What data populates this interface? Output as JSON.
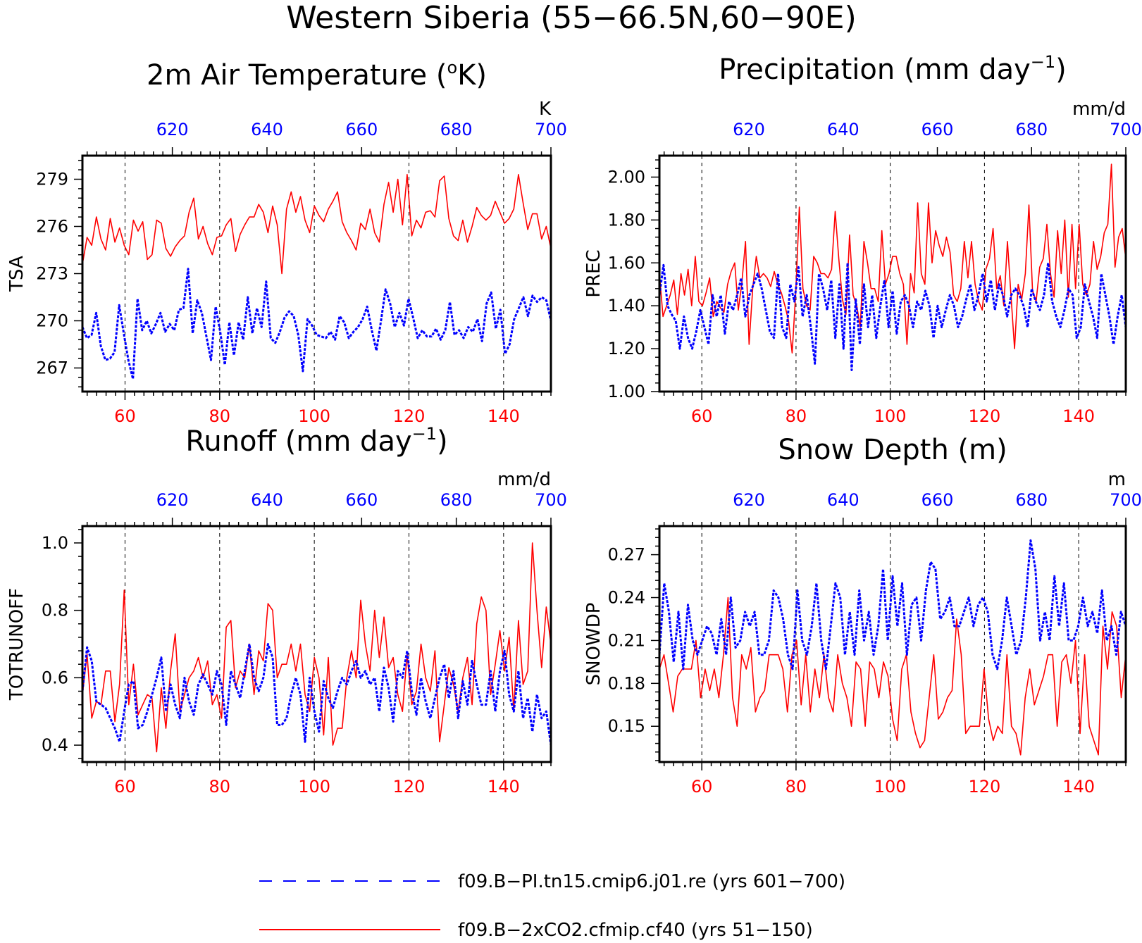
{
  "title": "Western Siberia (55−66.5N,60−90E)",
  "colors": {
    "run_2xco2": "#ff0000",
    "run_pi": "#0000ff",
    "axis": "#000000"
  },
  "legend": {
    "entries": [
      {
        "label": "f09.B−PI.tn15.cmip6.j01.re (yrs 601−700)",
        "color": "#0000ff",
        "style": "dashed"
      },
      {
        "label": "f09.B−2xCO2.cfmip.cf40 (yrs 51−150)",
        "color": "#ff0000",
        "style": "solid"
      }
    ]
  },
  "chart_data": [
    {
      "type": "line",
      "title_main": "2m Air Temperature (",
      "title_sup": "o",
      "title_tail": "K)",
      "ylabel": "TSA",
      "unit": "K",
      "xlim_bottom": [
        51,
        150
      ],
      "xlim_top": [
        601,
        700
      ],
      "xticks_bottom": [
        "60",
        "80",
        "100",
        "120",
        "140"
      ],
      "xticks_top": [
        "620",
        "640",
        "660",
        "680",
        "700"
      ],
      "ylim": [
        265.5,
        280.5
      ],
      "yticks": [
        "267",
        "270",
        "273",
        "276",
        "279"
      ],
      "grid_x": true,
      "series": [
        {
          "values": [
            273.6,
            275.3,
            274.8,
            276.6,
            275.2,
            274.5,
            276.5,
            275.0,
            275.9,
            274.8,
            274.2,
            276.4,
            275.7,
            276.3,
            273.9,
            274.2,
            276.4,
            276.2,
            274.6,
            274.1,
            274.7,
            275.1,
            275.4,
            276.9,
            277.8,
            275.2,
            276.0,
            274.9,
            274.2,
            275.3,
            275.4,
            276.1,
            276.5,
            274.4,
            275.5,
            276.1,
            276.6,
            276.6,
            277.4,
            276.9,
            275.6,
            277.3,
            276.1,
            273.0,
            277.1,
            278.2,
            276.9,
            277.9,
            276.4,
            275.6,
            277.3,
            276.7,
            276.3,
            277.1,
            277.6,
            278.2,
            276.3,
            275.6,
            275.1,
            274.5,
            276.2,
            275.8,
            277.1,
            275.6,
            275.0,
            277.4,
            278.8,
            276.9,
            279.0,
            276.1,
            279.3,
            275.4,
            276.4,
            275.9,
            276.9,
            277.0,
            276.6,
            278.9,
            279.2,
            276.5,
            275.4,
            275.1,
            276.4,
            275.0,
            276.0,
            277.2,
            276.7,
            276.4,
            276.7,
            277.6,
            276.9,
            276.2,
            276.5,
            277.1,
            279.3,
            277.5,
            275.8,
            276.8,
            276.8,
            275.2,
            276.0,
            274.6
          ]
        },
        {
          "values": [
            269.6,
            268.9,
            269.1,
            270.5,
            268.4,
            267.5,
            267.6,
            268.0,
            271.0,
            269.2,
            267.5,
            266.3,
            271.4,
            269.4,
            270.0,
            269.2,
            269.8,
            270.5,
            269.3,
            269.8,
            269.4,
            270.7,
            270.8,
            273.3,
            269.2,
            271.3,
            270.5,
            269.0,
            267.5,
            270.9,
            269.3,
            267.2,
            269.9,
            267.8,
            269.9,
            268.8,
            271.5,
            269.2,
            270.8,
            269.6,
            272.5,
            268.9,
            268.6,
            269.3,
            270.2,
            270.6,
            270.3,
            269.1,
            266.8,
            270.1,
            269.7,
            269.1,
            269.0,
            268.9,
            269.3,
            268.8,
            270.3,
            269.9,
            268.9,
            269.3,
            269.6,
            270.1,
            270.9,
            269.4,
            268.1,
            270.0,
            272.0,
            271.1,
            269.6,
            270.5,
            269.7,
            271.4,
            270.2,
            268.9,
            269.4,
            269.0,
            269.0,
            269.5,
            268.8,
            269.4,
            271.2,
            269.1,
            269.4,
            268.9,
            269.6,
            269.3,
            270.1,
            268.7,
            271.1,
            271.8,
            269.5,
            270.7,
            267.9,
            268.5,
            270.1,
            270.8,
            271.5,
            270.3,
            271.6,
            271.2,
            271.5,
            271.3,
            270.0
          ]
        }
      ]
    },
    {
      "type": "line",
      "title_main": "Precipitation (mm day",
      "title_sup": "−1",
      "title_tail": ")",
      "ylabel": "PREC",
      "unit": "mm/d",
      "xlim_bottom": [
        51,
        150
      ],
      "xlim_top": [
        601,
        700
      ],
      "xticks_bottom": [
        "60",
        "80",
        "100",
        "120",
        "140"
      ],
      "xticks_top": [
        "620",
        "640",
        "660",
        "680",
        "700"
      ],
      "ylim": [
        1.0,
        2.1
      ],
      "yticks": [
        "1.00",
        "1.20",
        "1.40",
        "1.60",
        "1.80",
        "2.00"
      ],
      "grid_x": true,
      "series": [
        {
          "values": [
            1.55,
            1.35,
            1.4,
            1.45,
            1.52,
            1.36,
            1.55,
            1.45,
            1.57,
            1.4,
            1.63,
            1.42,
            1.4,
            1.46,
            1.53,
            1.35,
            1.42,
            1.39,
            1.37,
            1.5,
            1.56,
            1.6,
            1.38,
            1.51,
            1.7,
            1.22,
            1.48,
            1.63,
            1.53,
            1.55,
            1.53,
            1.49,
            1.56,
            1.5,
            1.46,
            1.4,
            1.33,
            1.18,
            1.46,
            1.86,
            1.48,
            1.4,
            1.38,
            1.63,
            1.6,
            1.55,
            1.55,
            1.53,
            1.57,
            1.84,
            1.62,
            1.43,
            1.36,
            1.73,
            1.45,
            1.4,
            1.3,
            1.7,
            1.6,
            1.48,
            1.48,
            1.42,
            1.75,
            1.5,
            1.55,
            1.63,
            1.63,
            1.55,
            1.5,
            1.22,
            1.55,
            1.46,
            1.88,
            1.55,
            1.5,
            1.88,
            1.6,
            1.75,
            1.68,
            1.63,
            1.72,
            1.65,
            1.45,
            1.42,
            1.48,
            1.7,
            1.53,
            1.7,
            1.5,
            1.42,
            1.38,
            1.57,
            1.62,
            1.76,
            1.48,
            1.54,
            1.4,
            1.7,
            1.45,
            1.2,
            1.5,
            1.43,
            1.55,
            1.87,
            1.47,
            1.42,
            1.58,
            1.62,
            1.78,
            1.55,
            1.44,
            1.75,
            1.55,
            1.8,
            1.44,
            1.78,
            1.48,
            1.78,
            1.5,
            1.45,
            1.5,
            1.7,
            1.57,
            1.63,
            1.74,
            1.78,
            2.06,
            1.58,
            1.72,
            1.76,
            1.62
          ]
        },
        {
          "values": [
            1.45,
            1.59,
            1.4,
            1.36,
            1.33,
            1.2,
            1.35,
            1.25,
            1.2,
            1.28,
            1.38,
            1.3,
            1.22,
            1.45,
            1.35,
            1.45,
            1.27,
            1.42,
            1.38,
            1.45,
            1.53,
            1.35,
            1.45,
            1.5,
            1.55,
            1.48,
            1.38,
            1.28,
            1.25,
            1.55,
            1.3,
            1.25,
            1.5,
            1.42,
            1.58,
            1.35,
            1.45,
            1.3,
            1.13,
            1.55,
            1.48,
            1.38,
            1.52,
            1.25,
            1.5,
            1.2,
            1.6,
            1.1,
            1.43,
            1.22,
            1.5,
            1.3,
            1.45,
            1.25,
            1.4,
            1.52,
            1.3,
            1.47,
            1.27,
            1.42,
            1.45,
            1.4,
            1.3,
            1.42,
            1.38,
            1.47,
            1.4,
            1.25,
            1.4,
            1.3,
            1.38,
            1.45,
            1.4,
            1.3,
            1.35,
            1.43,
            1.5,
            1.38,
            1.45,
            1.55,
            1.42,
            1.52,
            1.38,
            1.5,
            1.45,
            1.35,
            1.45,
            1.48,
            1.45,
            1.4,
            1.3,
            1.48,
            1.42,
            1.38,
            1.45,
            1.6,
            1.42,
            1.35,
            1.3,
            1.38,
            1.48,
            1.45,
            1.25,
            1.3,
            1.5,
            1.42,
            1.35,
            1.25,
            1.55,
            1.45,
            1.35,
            1.22,
            1.35,
            1.45,
            1.3
          ]
        }
      ]
    },
    {
      "type": "line",
      "title_main": "Runoff (mm day",
      "title_sup": "−1",
      "title_tail": ")",
      "ylabel": "TOTRUNOFF",
      "unit": "mm/d",
      "xlim_bottom": [
        51,
        150
      ],
      "xlim_top": [
        601,
        700
      ],
      "xticks_bottom": [
        "60",
        "80",
        "100",
        "120",
        "140"
      ],
      "xticks_top": [
        "620",
        "640",
        "660",
        "680",
        "700"
      ],
      "ylim": [
        0.35,
        1.05
      ],
      "yticks": [
        "0.4",
        "0.6",
        "0.8",
        "1.0"
      ],
      "grid_x": true,
      "series": [
        {
          "values": [
            0.55,
            0.67,
            0.48,
            0.53,
            0.52,
            0.62,
            0.62,
            0.47,
            0.58,
            0.86,
            0.52,
            0.64,
            0.49,
            0.52,
            0.55,
            0.54,
            0.38,
            0.57,
            0.45,
            0.62,
            0.73,
            0.5,
            0.55,
            0.6,
            0.62,
            0.66,
            0.6,
            0.65,
            0.52,
            0.55,
            0.48,
            0.75,
            0.77,
            0.57,
            0.62,
            0.6,
            0.7,
            0.55,
            0.68,
            0.65,
            0.82,
            0.8,
            0.6,
            0.64,
            0.64,
            0.7,
            0.62,
            0.7,
            0.55,
            0.5,
            0.66,
            0.6,
            0.43,
            0.66,
            0.4,
            0.45,
            0.45,
            0.6,
            0.68,
            0.6,
            0.83,
            0.7,
            0.62,
            0.8,
            0.66,
            0.78,
            0.63,
            0.66,
            0.55,
            0.5,
            0.67,
            0.52,
            0.56,
            0.7,
            0.6,
            0.56,
            0.68,
            0.41,
            0.52,
            0.63,
            0.58,
            0.5,
            0.6,
            0.66,
            0.52,
            0.76,
            0.84,
            0.8,
            0.55,
            0.64,
            0.74,
            0.62,
            0.72,
            0.5,
            0.77,
            0.58,
            0.62,
            1.0,
            0.8,
            0.63,
            0.81,
            0.7
          ]
        },
        {
          "values": [
            0.56,
            0.69,
            0.65,
            0.53,
            0.52,
            0.51,
            0.48,
            0.45,
            0.41,
            0.5,
            0.58,
            0.59,
            0.45,
            0.46,
            0.5,
            0.55,
            0.6,
            0.66,
            0.5,
            0.58,
            0.52,
            0.48,
            0.6,
            0.53,
            0.49,
            0.58,
            0.61,
            0.58,
            0.55,
            0.62,
            0.58,
            0.46,
            0.62,
            0.58,
            0.54,
            0.62,
            0.7,
            0.6,
            0.56,
            0.6,
            0.7,
            0.66,
            0.46,
            0.46,
            0.48,
            0.55,
            0.6,
            0.55,
            0.41,
            0.6,
            0.5,
            0.44,
            0.59,
            0.54,
            0.51,
            0.56,
            0.6,
            0.58,
            0.62,
            0.65,
            0.6,
            0.62,
            0.58,
            0.6,
            0.5,
            0.63,
            0.57,
            0.47,
            0.62,
            0.6,
            0.68,
            0.56,
            0.49,
            0.6,
            0.53,
            0.48,
            0.54,
            0.6,
            0.64,
            0.54,
            0.62,
            0.48,
            0.59,
            0.52,
            0.65,
            0.58,
            0.52,
            0.52,
            0.62,
            0.5,
            0.62,
            0.68,
            0.55,
            0.5,
            0.62,
            0.48,
            0.54,
            0.44,
            0.55,
            0.48,
            0.5,
            0.4
          ]
        }
      ]
    },
    {
      "type": "line",
      "title_main": "Snow Depth (m)",
      "title_sup": "",
      "title_tail": "",
      "ylabel": "SNOWDP",
      "unit": "m",
      "xlim_bottom": [
        51,
        150
      ],
      "xlim_top": [
        601,
        700
      ],
      "xticks_bottom": [
        "60",
        "80",
        "100",
        "120",
        "140"
      ],
      "xticks_top": [
        "620",
        "640",
        "660",
        "680",
        "700"
      ],
      "ylim": [
        0.125,
        0.29
      ],
      "yticks": [
        "0.15",
        "0.18",
        "0.21",
        "0.24",
        "0.27"
      ],
      "grid_x": true,
      "series": [
        {
          "values": [
            0.19,
            0.2,
            0.18,
            0.16,
            0.185,
            0.19,
            0.19,
            0.19,
            0.21,
            0.17,
            0.19,
            0.175,
            0.19,
            0.17,
            0.2,
            0.24,
            0.17,
            0.15,
            0.2,
            0.19,
            0.205,
            0.16,
            0.17,
            0.175,
            0.2,
            0.2,
            0.2,
            0.19,
            0.16,
            0.2,
            0.21,
            0.165,
            0.2,
            0.16,
            0.19,
            0.17,
            0.2,
            0.17,
            0.16,
            0.2,
            0.18,
            0.17,
            0.15,
            0.195,
            0.19,
            0.15,
            0.195,
            0.19,
            0.17,
            0.195,
            0.185,
            0.155,
            0.14,
            0.19,
            0.2,
            0.16,
            0.145,
            0.135,
            0.14,
            0.17,
            0.2,
            0.155,
            0.16,
            0.17,
            0.175,
            0.225,
            0.2,
            0.145,
            0.15,
            0.15,
            0.15,
            0.19,
            0.155,
            0.14,
            0.15,
            0.145,
            0.2,
            0.15,
            0.145,
            0.13,
            0.17,
            0.19,
            0.165,
            0.175,
            0.185,
            0.2,
            0.2,
            0.15,
            0.195,
            0.2,
            0.18,
            0.21,
            0.145,
            0.2,
            0.15,
            0.14,
            0.13,
            0.22,
            0.19,
            0.23,
            0.22,
            0.17,
            0.2
          ]
        },
        {
          "values": [
            0.2,
            0.25,
            0.23,
            0.195,
            0.23,
            0.19,
            0.235,
            0.21,
            0.2,
            0.21,
            0.22,
            0.215,
            0.2,
            0.225,
            0.2,
            0.24,
            0.205,
            0.21,
            0.23,
            0.22,
            0.23,
            0.2,
            0.2,
            0.21,
            0.245,
            0.24,
            0.225,
            0.2,
            0.19,
            0.245,
            0.21,
            0.2,
            0.22,
            0.25,
            0.21,
            0.19,
            0.22,
            0.25,
            0.24,
            0.2,
            0.23,
            0.2,
            0.245,
            0.21,
            0.23,
            0.2,
            0.22,
            0.26,
            0.21,
            0.255,
            0.22,
            0.25,
            0.2,
            0.235,
            0.24,
            0.21,
            0.245,
            0.265,
            0.26,
            0.225,
            0.23,
            0.24,
            0.22,
            0.22,
            0.23,
            0.24,
            0.22,
            0.235,
            0.24,
            0.23,
            0.2,
            0.19,
            0.21,
            0.24,
            0.22,
            0.2,
            0.21,
            0.24,
            0.28,
            0.26,
            0.21,
            0.23,
            0.21,
            0.255,
            0.22,
            0.25,
            0.21,
            0.21,
            0.22,
            0.24,
            0.22,
            0.23,
            0.215,
            0.245,
            0.21,
            0.22,
            0.2,
            0.23,
            0.22
          ]
        }
      ]
    }
  ]
}
